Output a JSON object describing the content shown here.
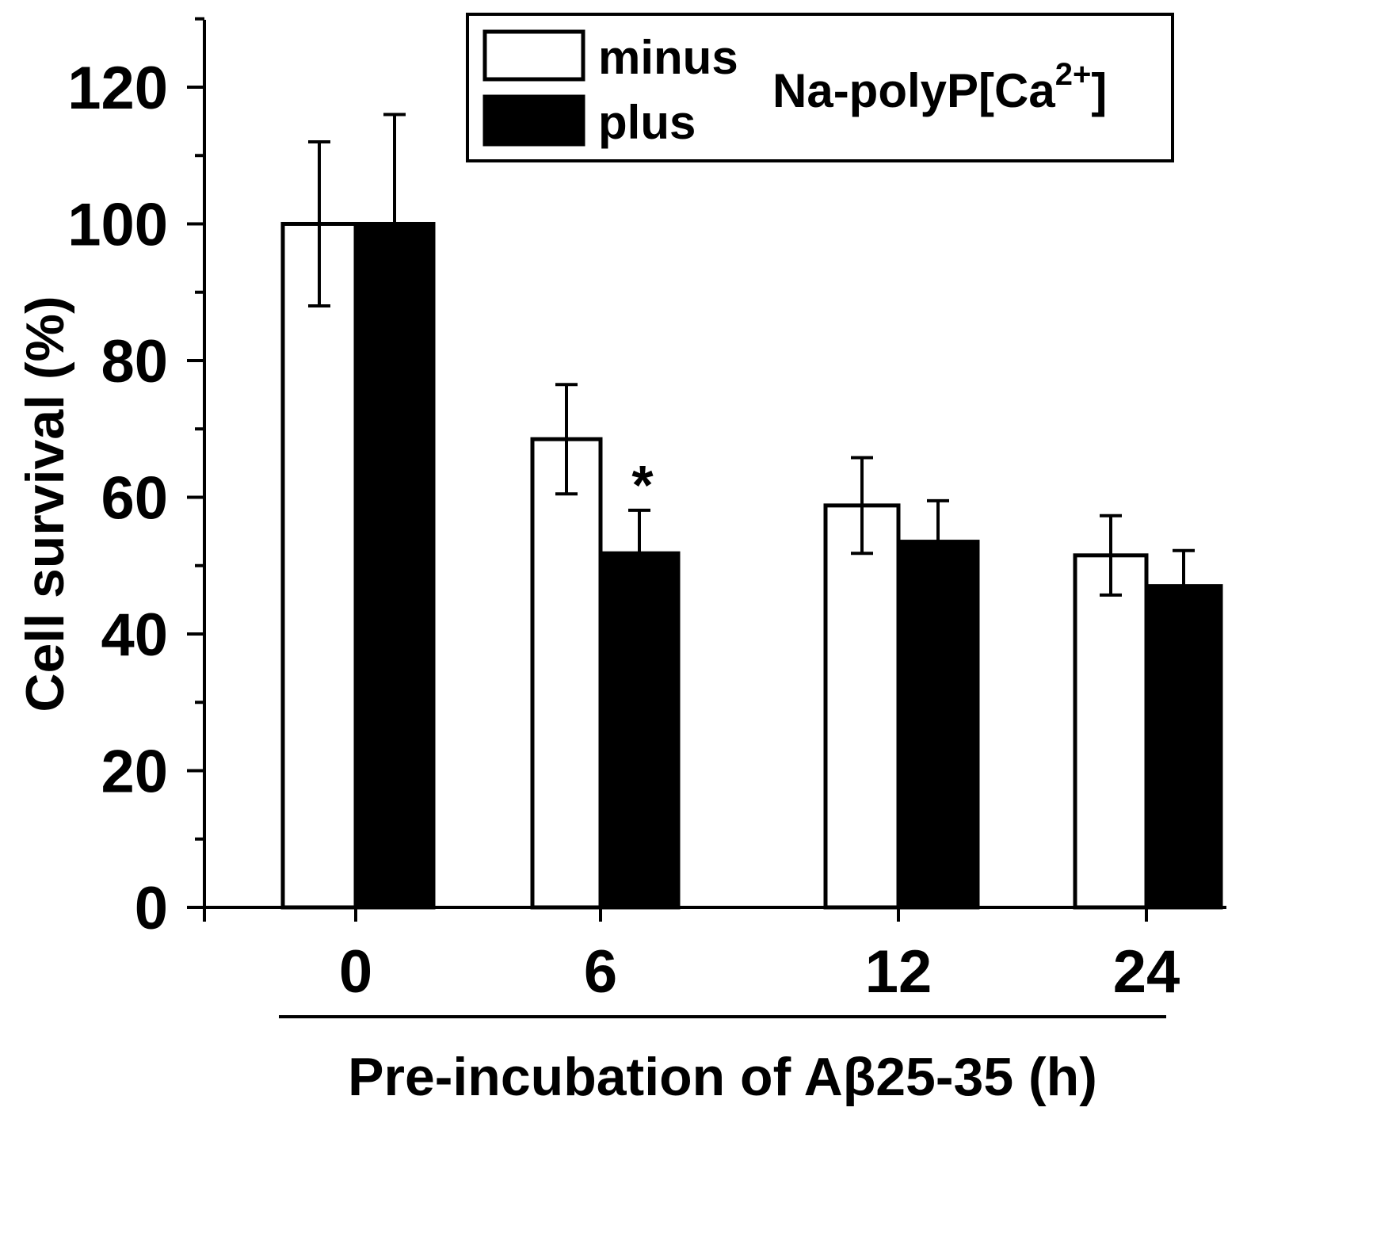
{
  "chart_data": {
    "type": "bar",
    "categories": [
      "0",
      "6",
      "12",
      "24"
    ],
    "series": [
      {
        "name": "minus",
        "fill": "#ffffff",
        "values": [
          100,
          68.5,
          58.8,
          51.5
        ],
        "errors": [
          12,
          8,
          7,
          5.8
        ]
      },
      {
        "name": "plus",
        "fill": "#000000",
        "values": [
          100,
          51.8,
          53.5,
          47
        ],
        "errors": [
          16,
          6.3,
          6,
          5.2
        ]
      }
    ],
    "legend_title": "Na-polyP[Ca",
    "legend_title_superscript": "2+",
    "legend_title_suffix": "]",
    "ylabel": "Cell survival (%)",
    "xlabel": "Pre-incubation of Aβ25-35 (h)",
    "ylim": [
      0,
      130
    ],
    "yticks": [
      0,
      20,
      40,
      60,
      80,
      100,
      120
    ],
    "yticks_minor_step": 10,
    "grid": false,
    "legend_position": "top-right",
    "annotations": [
      {
        "text": "*",
        "category": "6",
        "series": "plus"
      }
    ]
  }
}
